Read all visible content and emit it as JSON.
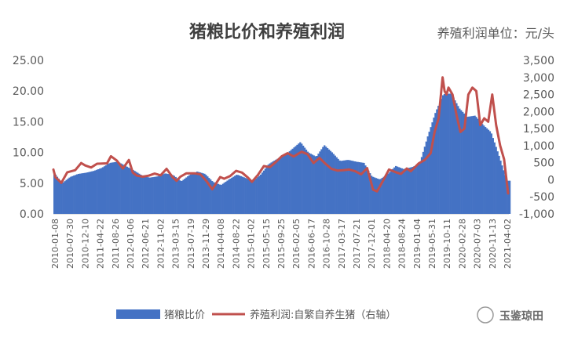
{
  "chart_data": {
    "type": "bar",
    "title": "猪粮比价和养殖利润",
    "unit_label": "养殖利润单位：元/头",
    "watermark": "玉鉴琼田",
    "colors": {
      "bar": "#4472C4",
      "line": "#C0504D",
      "axis": "#BFBFBF",
      "text": "#595959"
    },
    "left_axis": {
      "ylim": [
        0,
        25
      ],
      "ticks": [
        "0.00",
        "5.00",
        "10.00",
        "15.00",
        "20.00",
        "25.00"
      ]
    },
    "right_axis": {
      "ylim": [
        -1000,
        3500
      ],
      "ticks": [
        "-1,000",
        "-500",
        "0",
        "500",
        "1,000",
        "1,500",
        "2,000",
        "2,500",
        "3,000",
        "3,500"
      ]
    },
    "x_tick_labels": [
      "2010-01-08",
      "2010-07-30",
      "2010-12-10",
      "2011-04-22",
      "2011-08-26",
      "2012-01-06",
      "2012-06-21",
      "2012-11-02",
      "2013-03-15",
      "2013-07-19",
      "2013-11-29",
      "2014-04-08",
      "2014-08-22",
      "2015-01-02",
      "2015-05-15",
      "2015-09-25",
      "2016-02-05",
      "2016-06-17",
      "2016-10-28",
      "2017-03-17",
      "2017-07-21",
      "2017-12-01",
      "2018-04-20",
      "2018-08-24",
      "2019-01-04",
      "2019-05-31",
      "2019-10-11",
      "2020-02-28",
      "2020-07-03",
      "2020-11-13",
      "2021-04-02"
    ],
    "series": [
      {
        "name": "猪粮比价",
        "axis": "left",
        "kind": "bar",
        "x": [
          2010.0,
          2010.2,
          2010.4,
          2010.6,
          2010.8,
          2011.0,
          2011.2,
          2011.4,
          2011.6,
          2011.8,
          2012.0,
          2012.2,
          2012.4,
          2012.6,
          2012.8,
          2013.0,
          2013.2,
          2013.4,
          2013.6,
          2013.8,
          2014.0,
          2014.2,
          2014.4,
          2014.6,
          2014.8,
          2015.0,
          2015.2,
          2015.4,
          2015.6,
          2015.8,
          2016.0,
          2016.2,
          2016.4,
          2016.6,
          2016.8,
          2017.0,
          2017.2,
          2017.4,
          2017.6,
          2017.8,
          2018.0,
          2018.2,
          2018.4,
          2018.6,
          2018.8,
          2019.0,
          2019.2,
          2019.4,
          2019.6,
          2019.8,
          2020.0,
          2020.2,
          2020.4,
          2020.6,
          2020.8,
          2021.0,
          2021.2,
          2021.4
        ],
        "values": [
          6.7,
          5.0,
          6.0,
          6.5,
          6.7,
          7.0,
          7.5,
          8.3,
          8.5,
          7.8,
          7.1,
          6.3,
          5.9,
          6.1,
          6.6,
          6.3,
          5.3,
          6.3,
          6.9,
          6.5,
          5.2,
          4.7,
          5.6,
          6.4,
          5.9,
          5.3,
          6.4,
          8.1,
          8.9,
          9.5,
          10.6,
          11.7,
          10.0,
          9.3,
          11.2,
          10.0,
          8.6,
          8.8,
          8.5,
          8.3,
          6.1,
          5.6,
          6.5,
          7.8,
          7.3,
          7.6,
          8.1,
          12.5,
          16.5,
          19.5,
          19.6,
          17.2,
          15.8,
          16.0,
          14.5,
          13.3,
          9.5,
          5.4
        ]
      },
      {
        "name": "养殖利润:自繁自养生猪（右轴）",
        "axis": "right",
        "kind": "line",
        "x": [
          2010.0,
          2010.05,
          2010.2,
          2010.35,
          2010.55,
          2010.7,
          2010.8,
          2010.95,
          2011.1,
          2011.35,
          2011.45,
          2011.6,
          2011.75,
          2011.9,
          2012.0,
          2012.1,
          2012.25,
          2012.4,
          2012.55,
          2012.7,
          2012.85,
          2013.0,
          2013.1,
          2013.2,
          2013.35,
          2013.55,
          2013.7,
          2013.85,
          2014.0,
          2014.2,
          2014.3,
          2014.45,
          2014.6,
          2014.75,
          2014.9,
          2015.0,
          2015.15,
          2015.3,
          2015.45,
          2015.6,
          2015.75,
          2015.9,
          2016.05,
          2016.25,
          2016.4,
          2016.55,
          2016.7,
          2016.85,
          2017.0,
          2017.15,
          2017.3,
          2017.45,
          2017.6,
          2017.75,
          2017.9,
          2018.05,
          2018.15,
          2018.3,
          2018.45,
          2018.6,
          2018.75,
          2018.9,
          2019.0,
          2019.2,
          2019.35,
          2019.5,
          2019.6,
          2019.7,
          2019.8,
          2019.85,
          2019.9,
          2019.95,
          2020.05,
          2020.15,
          2020.25,
          2020.35,
          2020.45,
          2020.55,
          2020.65,
          2020.75,
          2020.85,
          2020.95,
          2021.05,
          2021.15,
          2021.25,
          2021.35,
          2021.45
        ],
        "values": [
          300,
          80,
          -90,
          220,
          280,
          490,
          420,
          360,
          470,
          480,
          690,
          560,
          330,
          580,
          210,
          120,
          90,
          120,
          180,
          130,
          320,
          80,
          -30,
          90,
          190,
          190,
          160,
          -30,
          -280,
          80,
          30,
          110,
          260,
          210,
          60,
          -60,
          140,
          400,
          370,
          520,
          690,
          780,
          680,
          820,
          750,
          490,
          640,
          470,
          320,
          270,
          280,
          300,
          250,
          160,
          340,
          -290,
          -340,
          -30,
          300,
          230,
          170,
          330,
          250,
          480,
          580,
          780,
          1400,
          1800,
          3000,
          2600,
          2500,
          2700,
          2500,
          1900,
          1400,
          1500,
          2500,
          2700,
          2600,
          1600,
          1800,
          1700,
          2500,
          1600,
          1000,
          600,
          -400
        ]
      }
    ]
  }
}
